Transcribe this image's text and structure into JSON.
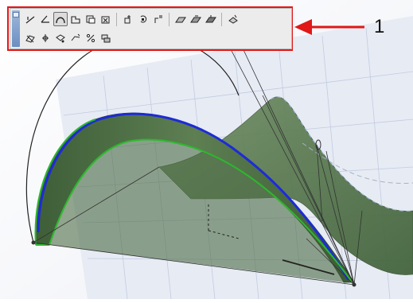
{
  "toolbar": {
    "row1_groups": [
      [
        "line-edge-icon",
        "angle-icon",
        "curve-span-icon",
        "rect-face-icon",
        "face-copy-icon",
        "box-delete-icon"
      ],
      [
        "edit-point-icon",
        "rotate-point-icon",
        "align-points-icon"
      ],
      [
        "surface-a-icon",
        "surface-b-icon",
        "surface-c-icon"
      ],
      [
        "tool-extra-icon"
      ]
    ],
    "row2": [
      "paint-mesh-icon",
      "inspect-icon",
      "weld-icon",
      "link-points-icon",
      "percent-icon",
      "layer-stack-icon"
    ],
    "active_tool": "curve-span-icon"
  },
  "callout": {
    "label": "1",
    "color": "#e01818"
  },
  "colors": {
    "surface": "#4a6b3f",
    "edge": "#1d2bd6",
    "boundary": "#2db82d"
  }
}
